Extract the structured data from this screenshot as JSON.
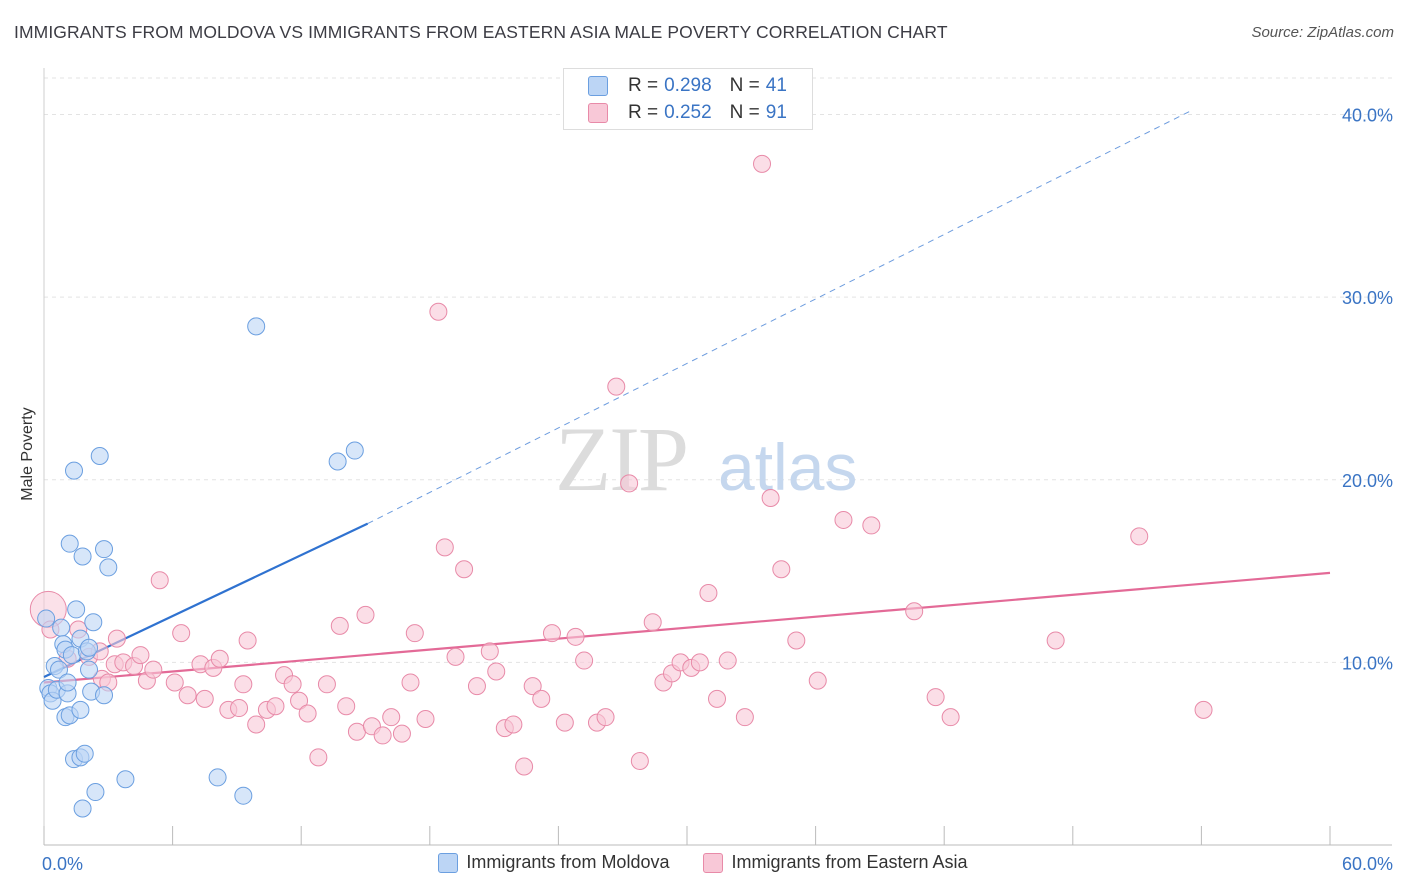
{
  "title": "IMMIGRANTS FROM MOLDOVA VS IMMIGRANTS FROM EASTERN ASIA MALE POVERTY CORRELATION CHART",
  "source": "Source: ZipAtlas.com",
  "watermark": {
    "bold": "ZIP",
    "light": "atlas"
  },
  "colors": {
    "blue_fill": "#bcd5f5",
    "blue_stroke": "#6b9fe0",
    "blue_line": "#2f72d0",
    "pink_fill": "#f8c8d7",
    "pink_stroke": "#e88aa8",
    "pink_line": "#e36a97",
    "axis_label": "#3a74c4"
  },
  "legend": {
    "rows": [
      {
        "r_label": "R =",
        "r_value": "0.298",
        "n_label": "N =",
        "n_value": "41"
      },
      {
        "r_label": "R =",
        "r_value": "0.252",
        "n_label": "N =",
        "n_value": "91"
      }
    ]
  },
  "bottom_legend": [
    "Immigrants from Moldova",
    "Immigrants from Eastern Asia"
  ],
  "chart_data": {
    "type": "scatter",
    "xlabel": "",
    "ylabel": "Male Poverty",
    "xlim": [
      0,
      60
    ],
    "ylim": [
      0,
      42
    ],
    "x_tick_labels": [
      {
        "value": 0,
        "label": "0.0%"
      },
      {
        "value": 60,
        "label": "60.0%"
      }
    ],
    "y_tick_labels": [
      {
        "value": 10,
        "label": "10.0%"
      },
      {
        "value": 20,
        "label": "20.0%"
      },
      {
        "value": 30,
        "label": "30.0%"
      },
      {
        "value": 40,
        "label": "40.0%"
      }
    ],
    "series": [
      {
        "name": "Immigrants from Moldova",
        "R": 0.298,
        "N": 41,
        "trend": {
          "x0": 0,
          "y0": 9.2,
          "x1": 15.1,
          "y1": 17.6,
          "dashed_to_x": 53.5,
          "dashed_to_y": 40.2
        },
        "points": [
          [
            0.1,
            12.4
          ],
          [
            0.2,
            8.6
          ],
          [
            0.3,
            8.3
          ],
          [
            0.4,
            7.9
          ],
          [
            0.5,
            9.8
          ],
          [
            0.6,
            8.5
          ],
          [
            0.7,
            9.6
          ],
          [
            0.8,
            11.9
          ],
          [
            0.9,
            11.0
          ],
          [
            1.0,
            10.7
          ],
          [
            1.0,
            7.0
          ],
          [
            1.1,
            8.3
          ],
          [
            1.1,
            8.9
          ],
          [
            1.2,
            16.5
          ],
          [
            1.2,
            7.1
          ],
          [
            1.3,
            10.4
          ],
          [
            1.4,
            20.5
          ],
          [
            1.4,
            4.7
          ],
          [
            1.5,
            12.9
          ],
          [
            1.7,
            4.8
          ],
          [
            1.7,
            7.4
          ],
          [
            1.7,
            11.3
          ],
          [
            1.8,
            15.8
          ],
          [
            1.8,
            2.0
          ],
          [
            1.9,
            5.0
          ],
          [
            2.0,
            10.6
          ],
          [
            2.1,
            9.6
          ],
          [
            2.1,
            10.8
          ],
          [
            2.2,
            8.4
          ],
          [
            2.3,
            12.2
          ],
          [
            2.4,
            2.9
          ],
          [
            2.6,
            21.3
          ],
          [
            2.8,
            16.2
          ],
          [
            2.8,
            8.2
          ],
          [
            3.0,
            15.2
          ],
          [
            3.8,
            3.6
          ],
          [
            8.1,
            3.7
          ],
          [
            9.3,
            2.7
          ],
          [
            9.9,
            28.4
          ],
          [
            13.7,
            21.0
          ],
          [
            14.5,
            21.6
          ]
        ]
      },
      {
        "name": "Immigrants from Eastern Asia",
        "R": 0.252,
        "N": 91,
        "trend": {
          "x0": 0,
          "y0": 8.9,
          "x1": 60,
          "y1": 14.9
        },
        "points": [
          [
            0.2,
            12.9
          ],
          [
            0.3,
            11.8
          ],
          [
            1.1,
            10.2
          ],
          [
            1.6,
            11.8
          ],
          [
            2.1,
            10.3
          ],
          [
            2.6,
            10.6
          ],
          [
            2.7,
            9.1
          ],
          [
            3.0,
            8.9
          ],
          [
            3.3,
            9.9
          ],
          [
            3.4,
            11.3
          ],
          [
            3.7,
            10.0
          ],
          [
            4.2,
            9.8
          ],
          [
            4.5,
            10.4
          ],
          [
            4.8,
            9.0
          ],
          [
            5.1,
            9.6
          ],
          [
            5.4,
            14.5
          ],
          [
            6.1,
            8.9
          ],
          [
            6.4,
            11.6
          ],
          [
            6.7,
            8.2
          ],
          [
            7.3,
            9.9
          ],
          [
            7.5,
            8.0
          ],
          [
            7.9,
            9.7
          ],
          [
            8.2,
            10.2
          ],
          [
            8.6,
            7.4
          ],
          [
            9.1,
            7.5
          ],
          [
            9.3,
            8.8
          ],
          [
            9.5,
            11.2
          ],
          [
            9.9,
            6.6
          ],
          [
            10.4,
            7.4
          ],
          [
            10.8,
            7.6
          ],
          [
            11.2,
            9.3
          ],
          [
            11.6,
            8.8
          ],
          [
            11.9,
            7.9
          ],
          [
            12.3,
            7.2
          ],
          [
            12.8,
            4.8
          ],
          [
            13.2,
            8.8
          ],
          [
            13.8,
            12.0
          ],
          [
            14.1,
            7.6
          ],
          [
            14.6,
            6.2
          ],
          [
            15.0,
            12.6
          ],
          [
            15.3,
            6.5
          ],
          [
            15.8,
            6.0
          ],
          [
            16.2,
            7.0
          ],
          [
            16.7,
            6.1
          ],
          [
            17.1,
            8.9
          ],
          [
            17.3,
            11.6
          ],
          [
            17.8,
            6.9
          ],
          [
            18.4,
            29.2
          ],
          [
            18.7,
            16.3
          ],
          [
            19.2,
            10.3
          ],
          [
            19.6,
            15.1
          ],
          [
            20.2,
            8.7
          ],
          [
            20.8,
            10.6
          ],
          [
            21.1,
            9.5
          ],
          [
            21.5,
            6.4
          ],
          [
            21.9,
            6.6
          ],
          [
            22.4,
            4.3
          ],
          [
            22.8,
            8.7
          ],
          [
            23.2,
            8.0
          ],
          [
            23.7,
            11.6
          ],
          [
            24.3,
            6.7
          ],
          [
            24.8,
            11.4
          ],
          [
            25.2,
            10.1
          ],
          [
            25.8,
            6.7
          ],
          [
            26.2,
            7.0
          ],
          [
            26.7,
            25.1
          ],
          [
            27.3,
            19.8
          ],
          [
            27.8,
            4.6
          ],
          [
            28.4,
            12.2
          ],
          [
            28.9,
            8.9
          ],
          [
            29.3,
            9.4
          ],
          [
            29.7,
            10.0
          ],
          [
            30.2,
            9.7
          ],
          [
            30.6,
            10.0
          ],
          [
            31.0,
            13.8
          ],
          [
            31.4,
            8.0
          ],
          [
            31.9,
            10.1
          ],
          [
            32.7,
            7.0
          ],
          [
            33.5,
            37.3
          ],
          [
            33.9,
            19.0
          ],
          [
            34.4,
            15.1
          ],
          [
            35.1,
            11.2
          ],
          [
            36.1,
            9.0
          ],
          [
            37.3,
            17.8
          ],
          [
            38.6,
            17.5
          ],
          [
            40.6,
            12.8
          ],
          [
            41.6,
            8.1
          ],
          [
            42.3,
            7.0
          ],
          [
            47.2,
            11.2
          ],
          [
            51.1,
            16.9
          ],
          [
            54.1,
            7.4
          ]
        ]
      }
    ]
  }
}
